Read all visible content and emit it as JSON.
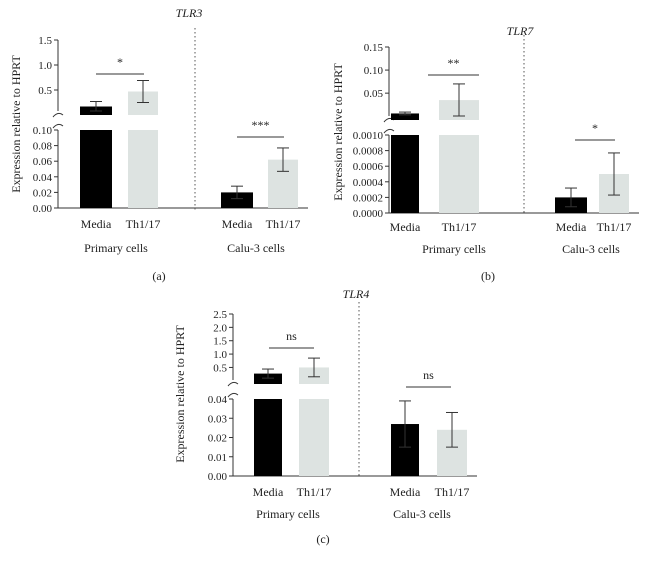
{
  "figure": {
    "y_label": "Expression relative to HPRT",
    "categories": [
      "Media",
      "Th1/17"
    ],
    "groups": [
      "Primary cells",
      "Calu-3 cells"
    ]
  },
  "colors": {
    "media": "#000000",
    "th": "#dde3e1",
    "axis": "#333333",
    "divider": "#555555"
  },
  "chart_data": [
    {
      "type": "bar",
      "panel_label": "(a)",
      "title": "TLR3",
      "categories": [
        "Media",
        "Th1/17"
      ],
      "groups": [
        "Primary cells",
        "Calu-3 cells"
      ],
      "series": [
        {
          "name": "Primary cells",
          "values": [
            0.17,
            0.47
          ],
          "errors": [
            0.1,
            0.22
          ]
        },
        {
          "name": "Calu-3 cells",
          "values": [
            0.02,
            0.062
          ],
          "errors": [
            0.008,
            0.015
          ]
        }
      ],
      "upper_ticks": [
        "0.5",
        "1.0",
        "1.5"
      ],
      "upper_range": [
        0.08,
        1.5
      ],
      "lower_ticks": [
        "0.00",
        "0.02",
        "0.04",
        "0.06",
        "0.08",
        "0.10"
      ],
      "lower_range": [
        0,
        0.1
      ],
      "significance": [
        "*",
        "***"
      ]
    },
    {
      "type": "bar",
      "panel_label": "(b)",
      "title": "TLR7",
      "categories": [
        "Media",
        "Th1/17"
      ],
      "groups": [
        "Primary cells",
        "Calu-3 cells"
      ],
      "series": [
        {
          "name": "Primary cells",
          "values": [
            0.006,
            0.035
          ],
          "errors": [
            0.003,
            0.035
          ]
        },
        {
          "name": "Calu-3 cells",
          "values": [
            0.0002,
            0.0005
          ],
          "errors": [
            0.00012,
            0.00027
          ]
        }
      ],
      "upper_ticks": [
        "0.05",
        "0.10",
        "0.15"
      ],
      "upper_range": [
        0.0005,
        0.15
      ],
      "lower_ticks": [
        "0.0000",
        "0.0002",
        "0.0004",
        "0.0006",
        "0.0008",
        "0.0010"
      ],
      "lower_range": [
        0,
        0.001
      ],
      "significance": [
        "**",
        "*"
      ]
    },
    {
      "type": "bar",
      "panel_label": "(c)",
      "title": "TLR4",
      "categories": [
        "Media",
        "Th1/17"
      ],
      "groups": [
        "Primary cells",
        "Calu-3 cells"
      ],
      "series": [
        {
          "name": "Primary cells",
          "values": [
            0.27,
            0.5
          ],
          "errors": [
            0.17,
            0.35
          ]
        },
        {
          "name": "Calu-3 cells",
          "values": [
            0.027,
            0.024
          ],
          "errors": [
            0.012,
            0.009
          ]
        }
      ],
      "upper_ticks": [
        "0.5",
        "1.0",
        "1.5",
        "2.0",
        "2.5"
      ],
      "upper_range": [
        0.03,
        2.5
      ],
      "lower_ticks": [
        "0.00",
        "0.01",
        "0.02",
        "0.03",
        "0.04"
      ],
      "lower_range": [
        0,
        0.04
      ],
      "significance": [
        "ns",
        "ns"
      ]
    }
  ]
}
